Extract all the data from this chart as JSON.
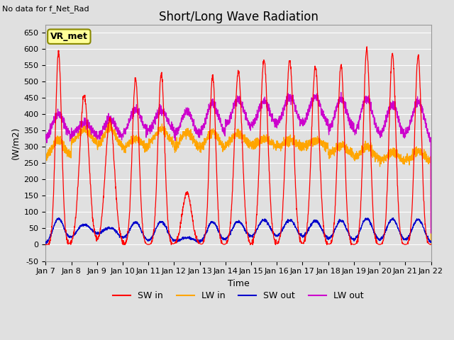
{
  "title": "Short/Long Wave Radiation",
  "xlabel": "Time",
  "ylabel": "(W/m2)",
  "top_left_text": "No data for f_Net_Rad",
  "box_label": "VR_met",
  "ylim": [
    -50,
    675
  ],
  "yticks": [
    -50,
    0,
    50,
    100,
    150,
    200,
    250,
    300,
    350,
    400,
    450,
    500,
    550,
    600,
    650
  ],
  "xtick_labels": [
    "Jan 7",
    "Jan 8",
    "Jan 9",
    "Jan 10",
    "Jan 11",
    "Jan 12",
    "Jan 13",
    "Jan 14",
    "Jan 15",
    "Jan 16",
    "Jan 17",
    "Jan 18",
    "Jan 19",
    "Jan 20",
    "Jan 21",
    "Jan 22"
  ],
  "legend": [
    "SW in",
    "LW in",
    "SW out",
    "LW out"
  ],
  "colors": {
    "SW_in": "#ff0000",
    "LW_in": "#ffa500",
    "SW_out": "#0000cc",
    "LW_out": "#cc00cc"
  },
  "background_color": "#e0e0e0",
  "plot_bg_color": "#e0e0e0",
  "grid_color": "#ffffff",
  "title_fontsize": 12,
  "axis_fontsize": 9,
  "legend_fontsize": 9,
  "sw_peaks": [
    590,
    455,
    385,
    510,
    525,
    160,
    520,
    530,
    565,
    565,
    545,
    550,
    600,
    585,
    580
  ],
  "sw_widths": [
    0.12,
    0.18,
    0.18,
    0.13,
    0.13,
    0.18,
    0.12,
    0.15,
    0.15,
    0.15,
    0.15,
    0.13,
    0.13,
    0.13,
    0.13
  ],
  "lw_base_vals": [
    260,
    300,
    285,
    285,
    300,
    285,
    285,
    295,
    295,
    295,
    295,
    270,
    255,
    248,
    252
  ],
  "lw_bump_peaks": [
    60,
    55,
    75,
    40,
    55,
    60,
    60,
    45,
    30,
    25,
    25,
    35,
    45,
    35,
    35
  ],
  "lw_out_base": [
    305,
    315,
    300,
    308,
    318,
    298,
    302,
    325,
    328,
    328,
    328,
    302,
    288,
    282,
    288
  ],
  "lw_out_peaks": [
    95,
    60,
    85,
    105,
    95,
    110,
    130,
    120,
    110,
    125,
    125,
    145,
    160,
    150,
    150
  ]
}
